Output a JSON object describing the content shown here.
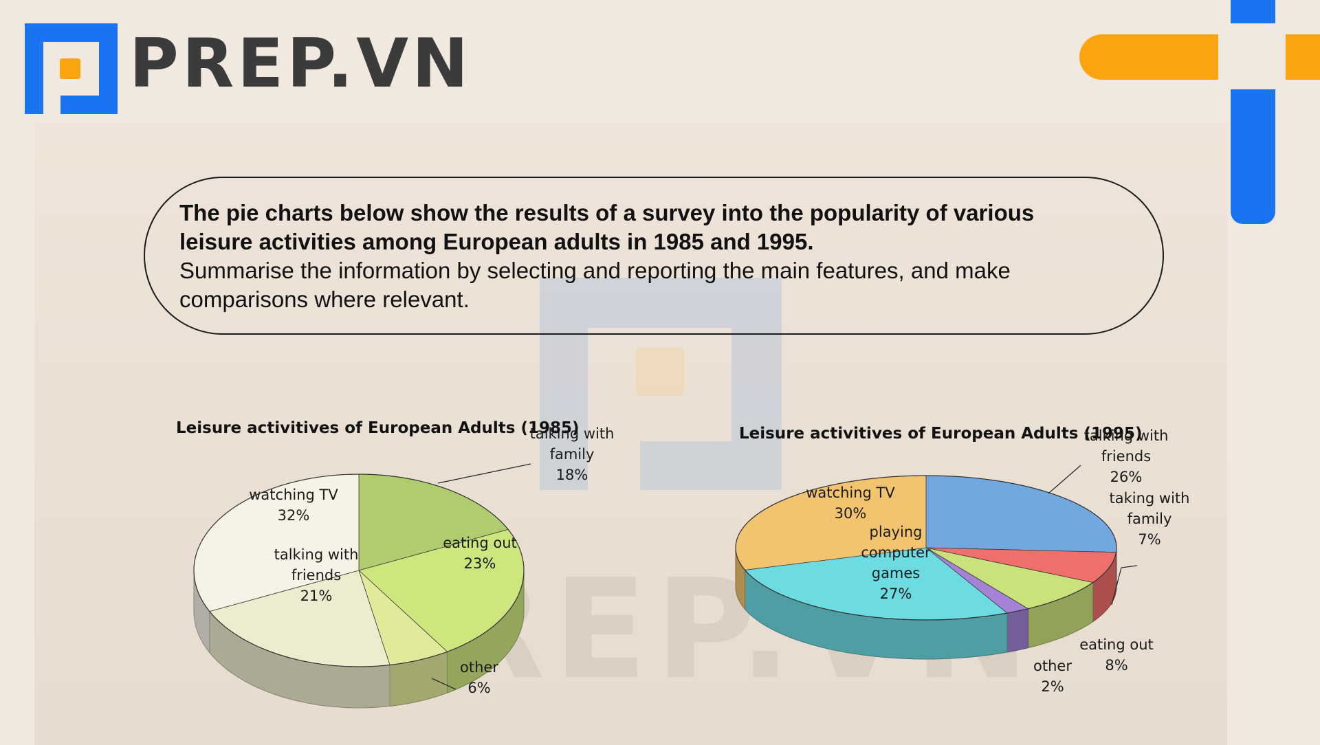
{
  "brand": {
    "name": "PREP.VN",
    "colors": {
      "blue": "#1a73f0",
      "orange": "#fca40f",
      "text": "#3b3b3b"
    }
  },
  "prompt": {
    "bold_line_1": "The pie charts below show the results of a survey into the popularity of various",
    "bold_line_2": "leisure activities among European adults in 1985 and 1995.",
    "line_3": "Summarise the information by selecting and reporting the main features, and make",
    "line_4": "comparisons where relevant."
  },
  "chart_data": [
    {
      "type": "pie",
      "title": "Leisure activitives of European Adults (1985)",
      "slices": [
        {
          "label_lines": [
            "talking with",
            "family"
          ],
          "value": 18,
          "value_label": "18%",
          "color": "#b1cc6f"
        },
        {
          "label_lines": [
            "eating out"
          ],
          "value": 23,
          "value_label": "23%",
          "color": "#cde67e"
        },
        {
          "label_lines": [
            "other"
          ],
          "value": 6,
          "value_label": "6%",
          "color": "#e1ea9a"
        },
        {
          "label_lines": [
            "talking with",
            "friends"
          ],
          "value": 21,
          "value_label": "21%",
          "color": "#eeeccf"
        },
        {
          "label_lines": [
            "watching TV"
          ],
          "value": 32,
          "value_label": "32%",
          "color": "#f5f2e6"
        }
      ]
    },
    {
      "type": "pie",
      "title": "Leisure activitives of European Adults (1995)",
      "slices": [
        {
          "label_lines": [
            "talking with",
            "friends"
          ],
          "value": 26,
          "value_label": "26%",
          "color": "#72a8e0"
        },
        {
          "label_lines": [
            "taking with",
            "family"
          ],
          "value": 7,
          "value_label": "7%",
          "color": "#ef6f6b"
        },
        {
          "label_lines": [
            "eating out"
          ],
          "value": 8,
          "value_label": "8%",
          "color": "#c9e27c"
        },
        {
          "label_lines": [
            "other"
          ],
          "value": 2,
          "value_label": "2%",
          "color": "#a483d6"
        },
        {
          "label_lines": [
            "playing",
            "computer",
            "games"
          ],
          "value": 27,
          "value_label": "27%",
          "color": "#6ddbe2"
        },
        {
          "label_lines": [
            "watching TV"
          ],
          "value": 30,
          "value_label": "30%",
          "color": "#f2c46f"
        }
      ]
    }
  ]
}
